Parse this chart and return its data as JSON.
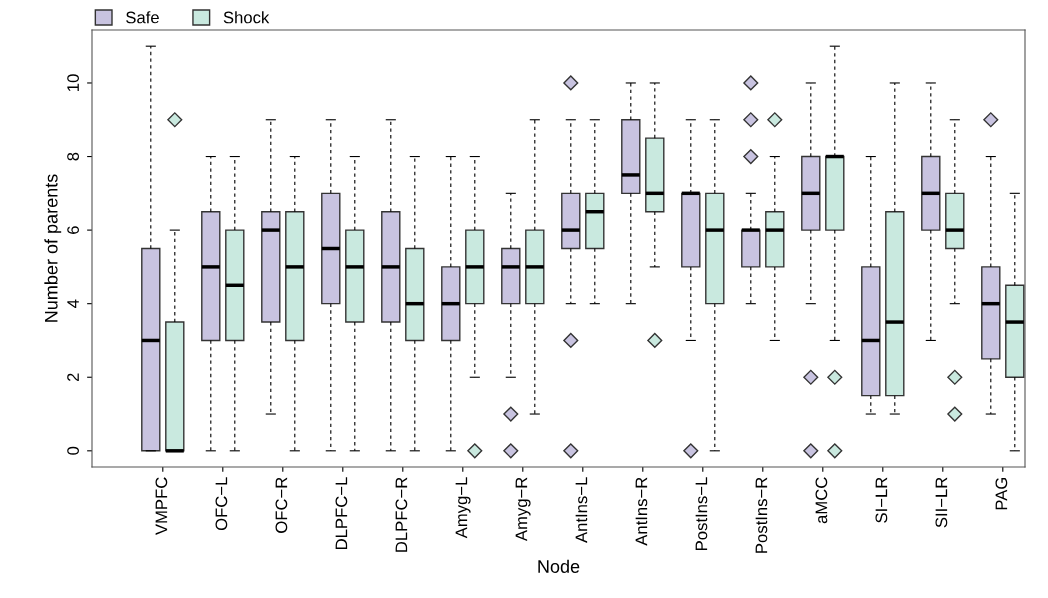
{
  "chart_data": {
    "type": "box",
    "xlabel": "Node",
    "ylabel": "Number of parents",
    "categories": [
      "VMPFC",
      "OFC−L",
      "OFC−R",
      "DLPFC−L",
      "DLPFC−R",
      "Amyg−L",
      "Amyg−R",
      "AntIns−L",
      "AntIns−R",
      "PostIns−L",
      "PostIns−R",
      "aMCC",
      "SI−LR",
      "SII−LR",
      "PAG"
    ],
    "ylim": [
      -0.44,
      11.44
    ],
    "yticks": [
      0,
      2,
      4,
      6,
      8,
      10
    ],
    "legend": "top left",
    "marker": "diamond",
    "series": [
      {
        "name": "Safe",
        "color": "#c8c3e0",
        "boxes": [
          {
            "low": 0,
            "q1": 0,
            "median": 3,
            "q3": 5.5,
            "high": 11
          },
          {
            "low": 0,
            "q1": 3,
            "median": 5,
            "q3": 6.5,
            "high": 8
          },
          {
            "low": 1,
            "q1": 3.5,
            "median": 6,
            "q3": 6.5,
            "high": 9
          },
          {
            "low": 0,
            "q1": 4,
            "median": 5.5,
            "q3": 7,
            "high": 9
          },
          {
            "low": 0,
            "q1": 3.5,
            "median": 5,
            "q3": 6.5,
            "high": 9
          },
          {
            "low": 0,
            "q1": 3,
            "median": 4,
            "q3": 5,
            "high": 8
          },
          {
            "low": 2,
            "q1": 4,
            "median": 5,
            "q3": 5.5,
            "high": 7,
            "outliers": [
              1,
              0
            ]
          },
          {
            "low": 4,
            "q1": 5.5,
            "median": 6,
            "q3": 7,
            "high": 9,
            "outliers": [
              10,
              3,
              0
            ]
          },
          {
            "low": 4,
            "q1": 7,
            "median": 7.5,
            "q3": 9,
            "high": 10
          },
          {
            "low": 3,
            "q1": 5,
            "median": 7,
            "q3": 7,
            "high": 9,
            "outliers": [
              0
            ]
          },
          {
            "low": 4,
            "q1": 5,
            "median": 6,
            "q3": 6,
            "high": 7,
            "outliers": [
              10,
              9,
              8
            ]
          },
          {
            "low": 4,
            "q1": 6,
            "median": 7,
            "q3": 8,
            "high": 10,
            "outliers": [
              2,
              0
            ]
          },
          {
            "low": 1,
            "q1": 1.5,
            "median": 3,
            "q3": 5,
            "high": 8
          },
          {
            "low": 3,
            "q1": 6,
            "median": 7,
            "q3": 8,
            "high": 10
          },
          {
            "low": 1,
            "q1": 2.5,
            "median": 4,
            "q3": 5,
            "high": 8,
            "outliers": [
              9
            ]
          }
        ]
      },
      {
        "name": "Shock",
        "color": "#c9e9df",
        "boxes": [
          {
            "low": 0,
            "q1": 0,
            "median": 0,
            "q3": 3.5,
            "high": 6,
            "outliers": [
              9
            ]
          },
          {
            "low": 0,
            "q1": 3,
            "median": 4.5,
            "q3": 6,
            "high": 8
          },
          {
            "low": 0,
            "q1": 3,
            "median": 5,
            "q3": 6.5,
            "high": 8
          },
          {
            "low": 0,
            "q1": 3.5,
            "median": 5,
            "q3": 6,
            "high": 8
          },
          {
            "low": 0,
            "q1": 3,
            "median": 4,
            "q3": 5.5,
            "high": 8
          },
          {
            "low": 2,
            "q1": 4,
            "median": 5,
            "q3": 6,
            "high": 8,
            "outliers": [
              0
            ]
          },
          {
            "low": 1,
            "q1": 4,
            "median": 5,
            "q3": 6,
            "high": 9
          },
          {
            "low": 4,
            "q1": 5.5,
            "median": 6.5,
            "q3": 7,
            "high": 9
          },
          {
            "low": 5,
            "q1": 6.5,
            "median": 7,
            "q3": 8.5,
            "high": 10,
            "outliers": [
              3
            ]
          },
          {
            "low": 0,
            "q1": 4,
            "median": 6,
            "q3": 7,
            "high": 9
          },
          {
            "low": 3,
            "q1": 5,
            "median": 6,
            "q3": 6.5,
            "high": 8,
            "outliers": [
              9
            ]
          },
          {
            "low": 3,
            "q1": 6,
            "median": 8,
            "q3": 8,
            "high": 11,
            "outliers": [
              2,
              0
            ]
          },
          {
            "low": 1,
            "q1": 1.5,
            "median": 3.5,
            "q3": 6.5,
            "high": 10
          },
          {
            "low": 4,
            "q1": 5.5,
            "median": 6,
            "q3": 7,
            "high": 9,
            "outliers": [
              2,
              1
            ]
          },
          {
            "low": 0,
            "q1": 2,
            "median": 3.5,
            "q3": 4.5,
            "high": 7
          }
        ]
      }
    ]
  }
}
